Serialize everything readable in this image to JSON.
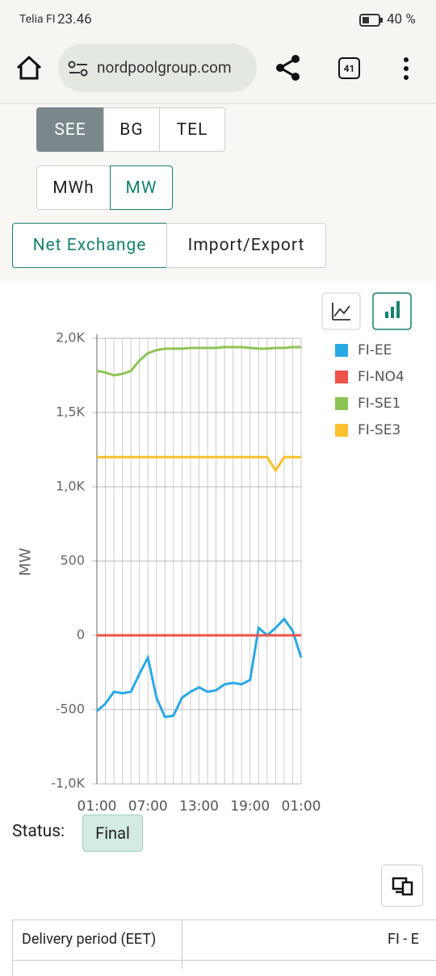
{
  "status_bar": {
    "carrier": "Telia FI",
    "time": "23.46",
    "battery": "40 %"
  },
  "browser": {
    "url": "nordpoolgroup.com",
    "tabs": "41"
  },
  "area_tabs": [
    "SEE",
    "BG",
    "TEL"
  ],
  "unit_tabs": [
    "MWh",
    "MW"
  ],
  "view_tabs": [
    "Net Exchange",
    "Import/Export"
  ],
  "chart_data": {
    "type": "line",
    "ylabel": "MW",
    "categories": [
      "01:00",
      null,
      null,
      null,
      null,
      null,
      "07:00",
      null,
      null,
      null,
      null,
      null,
      "13:00",
      null,
      null,
      null,
      null,
      null,
      "19:00",
      null,
      null,
      null,
      null,
      null,
      "01:00"
    ],
    "ylim": [
      -1000,
      2000
    ],
    "yticks": [
      {
        "value": -1000,
        "label": "-1,0K"
      },
      -500,
      0,
      500,
      {
        "value": 1000,
        "label": "1,0K"
      },
      {
        "value": 1500,
        "label": "1,5K"
      },
      {
        "value": 2000,
        "label": "2,0K"
      }
    ],
    "grid": true,
    "legend": "right",
    "series": [
      {
        "name": "FI-EE",
        "color": "#2aa8e6",
        "values": [
          -510,
          -460,
          -380,
          -390,
          -380,
          -260,
          -150,
          -420,
          -550,
          -540,
          -420,
          -380,
          -350,
          -380,
          -370,
          -330,
          -320,
          -330,
          -300,
          50,
          0,
          50,
          110,
          30,
          -150
        ]
      },
      {
        "name": "FI-NO4",
        "color": "#ef5248",
        "values": [
          0,
          0,
          0,
          0,
          0,
          0,
          0,
          0,
          0,
          0,
          0,
          0,
          0,
          0,
          0,
          0,
          0,
          0,
          0,
          0,
          0,
          0,
          0,
          0,
          0
        ]
      },
      {
        "name": "FI-SE1",
        "color": "#8dc456",
        "values": [
          1780,
          1770,
          1750,
          1760,
          1780,
          1850,
          1900,
          1920,
          1930,
          1930,
          1930,
          1935,
          1935,
          1935,
          1935,
          1940,
          1940,
          1940,
          1935,
          1930,
          1930,
          1935,
          1935,
          1940,
          1940
        ]
      },
      {
        "name": "FI-SE3",
        "color": "#fbc02d",
        "values": [
          1200,
          1200,
          1200,
          1200,
          1200,
          1200,
          1200,
          1200,
          1200,
          1200,
          1200,
          1200,
          1200,
          1200,
          1200,
          1200,
          1200,
          1200,
          1200,
          1200,
          1200,
          1110,
          1200,
          1200,
          1200
        ]
      }
    ]
  },
  "status": {
    "label": "Status:",
    "value": "Final"
  },
  "table": {
    "headers": [
      "Delivery period (EET)",
      "FI - E"
    ]
  }
}
